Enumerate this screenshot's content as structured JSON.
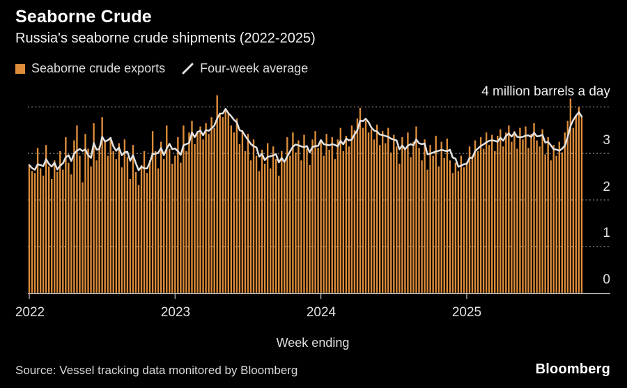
{
  "header": {
    "title": "Seaborne Crude",
    "subtitle": "Russia's seaborne crude shipments (2022-2025)"
  },
  "legend": {
    "items": [
      {
        "label": "Seaborne crude exports",
        "swatch": "square",
        "color": "#DC8C3A"
      },
      {
        "label": "Four-week average",
        "swatch": "diagonal-line",
        "color": "#E3E3E3"
      }
    ]
  },
  "footer": {
    "source": "Source: Vessel tracking data monitored by Bloomberg",
    "logo": "Bloomberg"
  },
  "colors": {
    "background": "#000000",
    "bar": "#DC8C3A",
    "average_line": "#E3E3E3",
    "gridline": "#7A7A7A",
    "axis": "#C4C4C4",
    "text": "#E2E2E2"
  },
  "chart_data": {
    "type": "bar",
    "title": "Seaborne Crude",
    "subtitle": "Russia's seaborne crude shipments (2022-2025)",
    "xlabel": "Week ending",
    "ylabel": "",
    "unit": "million barrels a day",
    "top_annotation": "4 million barrels a day",
    "ylim": [
      0,
      4.3
    ],
    "grid": "dotted-horizontal",
    "legend_position": "top-left",
    "x_ticks": [
      "2022",
      "2023",
      "2024",
      "2025"
    ],
    "x_tick_week_indices": [
      0,
      52,
      104,
      156
    ],
    "y_tick_labels_top_to_bottom": [
      "3",
      "2",
      "1",
      "0"
    ],
    "y_gridline_values": [
      4,
      3,
      2,
      1
    ],
    "x_description": "weekly data, week ending dates from Jan 2022 to mid-Oct 2025",
    "series": [
      {
        "name": "Seaborne crude exports",
        "type": "bar",
        "color": "#DC8C3A",
        "values": [
          2.75,
          2.62,
          2.58,
          3.12,
          2.68,
          2.52,
          3.18,
          2.72,
          2.45,
          2.85,
          2.6,
          3.05,
          2.65,
          3.35,
          2.8,
          2.55,
          3.28,
          3.6,
          2.95,
          2.38,
          3.42,
          3.1,
          2.72,
          3.65,
          2.85,
          3.15,
          3.78,
          3.25,
          2.95,
          3.35,
          3.05,
          2.88,
          3.22,
          2.7,
          3.3,
          2.92,
          2.45,
          3.18,
          2.6,
          2.32,
          2.75,
          3.05,
          2.58,
          2.85,
          3.48,
          3.05,
          2.68,
          3.25,
          2.88,
          3.6,
          3.1,
          2.78,
          2.95,
          3.35,
          2.8,
          3.6,
          3.05,
          3.45,
          3.7,
          3.2,
          3.48,
          3.58,
          3.3,
          3.65,
          3.42,
          3.78,
          3.55,
          4.25,
          3.85,
          3.78,
          3.95,
          3.88,
          3.6,
          3.45,
          3.75,
          3.2,
          3.5,
          3.05,
          3.42,
          2.85,
          3.3,
          2.95,
          2.62,
          3.08,
          2.78,
          3.22,
          2.68,
          3.15,
          2.88,
          2.52,
          3.05,
          2.82,
          3.35,
          2.95,
          3.45,
          3.02,
          3.28,
          2.85,
          3.4,
          3.1,
          2.75,
          3.3,
          3.48,
          3.12,
          3.25,
          2.95,
          3.42,
          3.08,
          3.35,
          2.88,
          3.3,
          3.55,
          3.05,
          3.38,
          3.15,
          3.6,
          3.5,
          3.75,
          3.98,
          3.55,
          3.7,
          3.45,
          3.52,
          3.3,
          3.62,
          3.18,
          3.48,
          3.22,
          3.55,
          3.02,
          3.4,
          3.15,
          2.78,
          3.35,
          3.08,
          3.45,
          2.92,
          3.25,
          3.58,
          3.12,
          2.85,
          3.3,
          2.65,
          3.18,
          2.95,
          3.38,
          2.72,
          3.25,
          2.9,
          3.32,
          2.85,
          2.58,
          2.8,
          2.62,
          2.95,
          2.7,
          2.82,
          3.15,
          2.95,
          3.28,
          3.05,
          3.35,
          3.1,
          3.45,
          3.18,
          3.4,
          3.05,
          3.38,
          3.52,
          3.15,
          3.45,
          3.6,
          3.25,
          3.48,
          3.1,
          3.55,
          3.3,
          3.58,
          3.12,
          3.42,
          3.65,
          3.28,
          3.15,
          3.52,
          2.98,
          3.35,
          2.85,
          3.18,
          2.95,
          3.25,
          3.02,
          3.45,
          3.7,
          4.18,
          3.55,
          3.82,
          4.0,
          3.8
        ]
      },
      {
        "name": "Four-week average",
        "type": "line",
        "color": "#E3E3E3",
        "derivation": "4-week trailing moving average of 'Seaborne crude exports' values"
      }
    ]
  }
}
